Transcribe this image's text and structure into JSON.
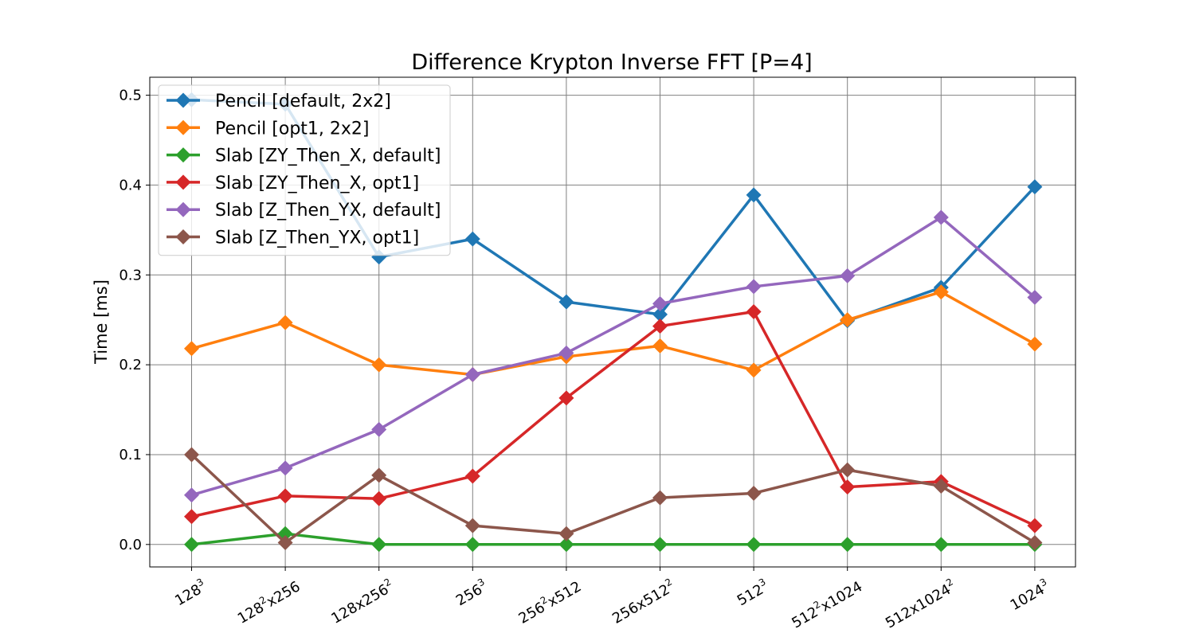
{
  "chart_data": {
    "type": "line",
    "title": "Difference Krypton Inverse FFT [P=4]",
    "xlabel": "",
    "ylabel": "Time [ms]",
    "categories": [
      {
        "base": "128",
        "sup": "3",
        "tail": ""
      },
      {
        "base": "128",
        "sup": "2",
        "tail": "x256"
      },
      {
        "base": "128x256",
        "sup": "2",
        "tail": ""
      },
      {
        "base": "256",
        "sup": "3",
        "tail": ""
      },
      {
        "base": "256",
        "sup": "2",
        "tail": "x512"
      },
      {
        "base": "256x512",
        "sup": "2",
        "tail": ""
      },
      {
        "base": "512",
        "sup": "3",
        "tail": ""
      },
      {
        "base": "512",
        "sup": "2",
        "tail": "x1024"
      },
      {
        "base": "512x1024",
        "sup": "2",
        "tail": ""
      },
      {
        "base": "1024",
        "sup": "3",
        "tail": ""
      }
    ],
    "yticks": [
      "0.0",
      "0.1",
      "0.2",
      "0.3",
      "0.4",
      "0.5"
    ],
    "ylim": [
      -0.025,
      0.52
    ],
    "grid": true,
    "legend_position": "top-left",
    "series": [
      {
        "name": "Pencil [default, 2x2]",
        "color": "#1f77b4",
        "values": [
          0.495,
          0.49,
          0.32,
          0.34,
          0.27,
          0.256,
          0.389,
          0.249,
          0.286,
          0.398
        ]
      },
      {
        "name": "Pencil [opt1, 2x2]",
        "color": "#ff7f0e",
        "values": [
          0.218,
          0.247,
          0.2,
          0.189,
          0.209,
          0.221,
          0.194,
          0.25,
          0.281,
          0.223
        ]
      },
      {
        "name": "Slab [ZY_Then_X, default]",
        "color": "#2ca02c",
        "values": [
          0.0,
          0.012,
          0.0,
          0.0,
          0.0,
          0.0,
          0.0,
          0.0,
          0.0,
          0.0
        ]
      },
      {
        "name": "Slab [ZY_Then_X, opt1]",
        "color": "#d62728",
        "values": [
          0.031,
          0.054,
          0.051,
          0.076,
          0.163,
          0.243,
          0.259,
          0.064,
          0.07,
          0.021
        ]
      },
      {
        "name": "Slab [Z_Then_YX, default]",
        "color": "#9467bd",
        "values": [
          0.055,
          0.085,
          0.128,
          0.189,
          0.213,
          0.268,
          0.287,
          0.299,
          0.364,
          0.275
        ]
      },
      {
        "name": "Slab [Z_Then_YX, opt1]",
        "color": "#8c564b",
        "values": [
          0.1,
          0.002,
          0.077,
          0.021,
          0.012,
          0.052,
          0.057,
          0.083,
          0.065,
          0.002
        ]
      }
    ]
  }
}
